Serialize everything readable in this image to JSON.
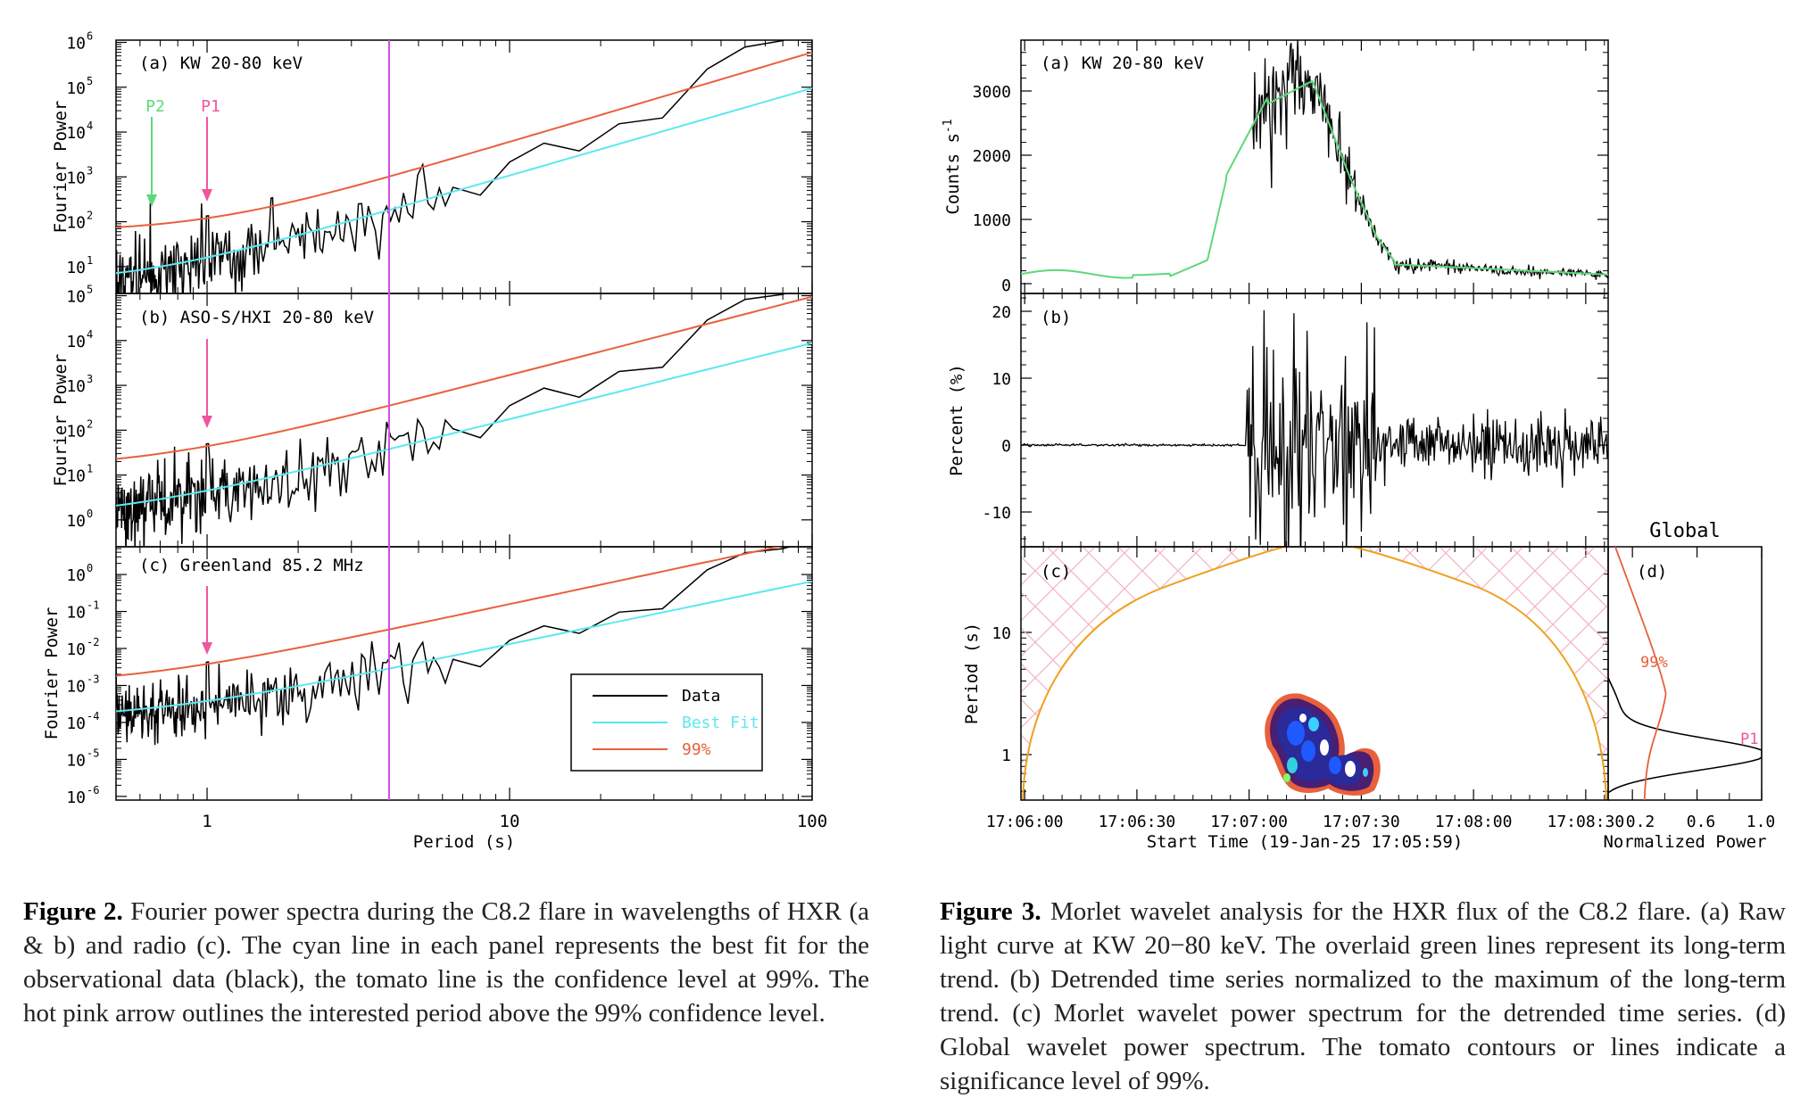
{
  "figure2": {
    "caption_label": "Figure 2.",
    "caption_text": " Fourier power spectra during the C8.2 flare in wavelengths of HXR (a & b) and radio (c). The cyan line in each panel represents the best fit for the observational data (black), the tomato line is the confidence level at 99%. The hot pink arrow outlines the interested period above the 99% confidence level.",
    "xlabel": "Period (s)",
    "ylabel": "Fourier Power",
    "x_ticks": [
      "1",
      "10",
      "100"
    ],
    "marker_line_period": 4,
    "panels": [
      {
        "label": "(a) KW 20-80 keV",
        "y_ticks": [
          "10",
          "10",
          "10",
          "10",
          "10",
          "10"
        ],
        "y_exps": [
          "1",
          "2",
          "3",
          "4",
          "5",
          "6"
        ],
        "arrows": [
          {
            "text": "P2",
            "period": 0.65
          },
          {
            "text": "P1",
            "period": 1.0
          }
        ]
      },
      {
        "label": "(b) ASO-S/HXI 20-80 keV",
        "y_ticks": [
          "10",
          "10",
          "10",
          "10",
          "10",
          "10"
        ],
        "y_exps": [
          "0",
          "1",
          "2",
          "3",
          "4",
          "5"
        ],
        "arrows": [
          {
            "text": "",
            "period": 1.0
          }
        ]
      },
      {
        "label": "(c) Greenland 85.2 MHz",
        "y_ticks": [
          "10",
          "10",
          "10",
          "10",
          "10",
          "10",
          "10"
        ],
        "y_exps": [
          "-6",
          "-5",
          "-4",
          "-3",
          "-2",
          "-1",
          "0"
        ],
        "arrows": [
          {
            "text": "",
            "period": 1.0
          }
        ]
      }
    ],
    "legend": [
      {
        "name": "Data",
        "color": "#000000"
      },
      {
        "name": "Best Fit",
        "color": "#5ce8f0"
      },
      {
        "name": "99%",
        "color": "#e8603c"
      }
    ]
  },
  "figure3": {
    "caption_label": "Figure 3.",
    "caption_text": " Morlet wavelet analysis for the HXR flux of the C8.2 flare. (a) Raw light curve at KW 20−80 keV. The overlaid green lines represent its long-term trend. (b) Detrended time series normalized to the maximum of the long-term trend. (c) Morlet wavelet power spectrum for the detrended time series. (d) Global wavelet power spectrum. The tomato contours or lines indicate a significance level of 99%.",
    "panel_a": {
      "label": "(a) KW 20-80 keV",
      "ylabel": "Counts s",
      "ylabel_sup": "-1",
      "y_ticks": [
        "0",
        "1000",
        "2000",
        "3000"
      ]
    },
    "panel_b": {
      "label": "(b)",
      "ylabel": "Percent (%)",
      "y_ticks": [
        "-10",
        "0",
        "10",
        "20"
      ]
    },
    "panel_c": {
      "label": "(c)",
      "ylabel": "Period (s)",
      "y_ticks": [
        "1",
        "10"
      ]
    },
    "panel_d": {
      "title": "Global",
      "label": "(d)",
      "sig_label": "99%",
      "peak_label": "P1",
      "x_ticks": [
        "0.2",
        "0.6",
        "1.0"
      ],
      "xlabel": "Normalized Power"
    },
    "x_ticks": [
      "17:06:00",
      "17:06:30",
      "17:07:00",
      "17:07:30",
      "17:08:00",
      "17:08:30"
    ],
    "xlabel": "Start Time (19-Jan-25 17:05:59)"
  },
  "colors": {
    "cyan": "#5ce8f0",
    "tomato": "#e8603c",
    "hotpink": "#f0559f",
    "green": "#5ed87a",
    "magenta": "#d24ee0",
    "orange": "#f0a020",
    "hatch": "#f2b6c4"
  }
}
